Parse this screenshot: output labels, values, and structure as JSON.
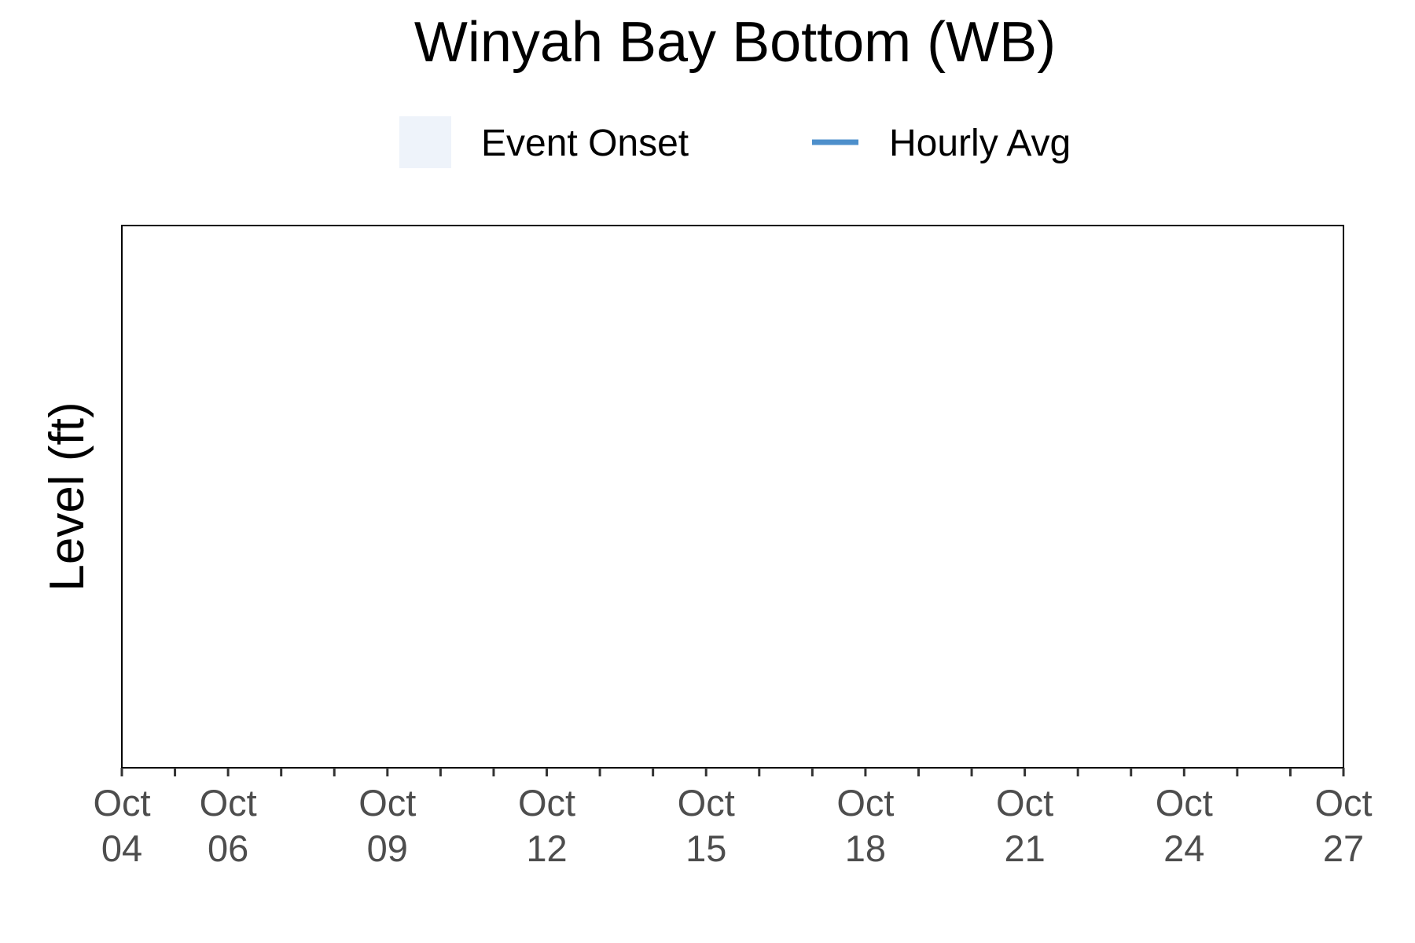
{
  "chart_data": {
    "type": "line",
    "title": "Winyah Bay Bottom (WB)",
    "xlabel": "",
    "ylabel": "Level (ft)",
    "xlim": [
      "Oct 04",
      "Oct 27"
    ],
    "x_tick_labels": [
      {
        "month": "Oct",
        "day": "04"
      },
      {
        "month": "Oct",
        "day": "06"
      },
      {
        "month": "Oct",
        "day": "09"
      },
      {
        "month": "Oct",
        "day": "12"
      },
      {
        "month": "Oct",
        "day": "15"
      },
      {
        "month": "Oct",
        "day": "18"
      },
      {
        "month": "Oct",
        "day": "21"
      },
      {
        "month": "Oct",
        "day": "24"
      },
      {
        "month": "Oct",
        "day": "27"
      }
    ],
    "y_tick_labels": [],
    "legend": {
      "placement": "top",
      "entries": [
        {
          "label": "Event Onset",
          "kind": "fill",
          "color": "#eef3fa"
        },
        {
          "label": "Hourly Avg",
          "kind": "line",
          "color": "#4d8fcb"
        }
      ]
    },
    "series": [
      {
        "name": "Hourly Avg",
        "values": []
      }
    ],
    "grid": false
  }
}
